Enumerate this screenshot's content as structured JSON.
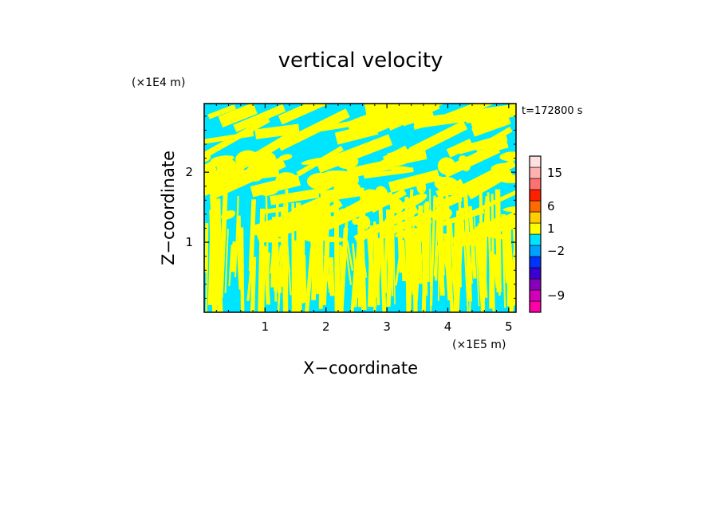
{
  "chart_data": {
    "type": "heatmap",
    "title": "vertical velocity",
    "xlabel": "X−coordinate",
    "ylabel": "Z−coordinate",
    "x_unit": "(×1E5 m)",
    "y_unit": "(×1E4 m)",
    "time_label": "t=172800 s",
    "xlim": [
      0,
      5.12
    ],
    "ylim": [
      0,
      2.98
    ],
    "x_ticks": [
      {
        "value": 1,
        "label": "1"
      },
      {
        "value": 2,
        "label": "2"
      },
      {
        "value": 3,
        "label": "3"
      },
      {
        "value": 4,
        "label": "4"
      },
      {
        "value": 5,
        "label": "5"
      }
    ],
    "y_ticks": [
      {
        "value": 1,
        "label": "1"
      },
      {
        "value": 2,
        "label": "2"
      }
    ],
    "field_colors": {
      "positive": "#ffff00",
      "negative": "#00e5ff"
    },
    "colorbar": {
      "bins": [
        {
          "color": "#ff00a8"
        },
        {
          "color": "#d100b8"
        },
        {
          "color": "#8800bb"
        },
        {
          "color": "#3a00d0"
        },
        {
          "color": "#0033ff"
        },
        {
          "color": "#00a2ff"
        },
        {
          "color": "#00e5ff"
        },
        {
          "color": "#ffff00"
        },
        {
          "color": "#ffcc00"
        },
        {
          "color": "#ff6a00"
        },
        {
          "color": "#ff2000"
        },
        {
          "color": "#ff7070"
        },
        {
          "color": "#ffb0b0"
        },
        {
          "color": "#ffe0e0"
        }
      ],
      "labels": [
        {
          "bin": 1.5,
          "text": "−9"
        },
        {
          "bin": 5.5,
          "text": "−2"
        },
        {
          "bin": 7.5,
          "text": "1"
        },
        {
          "bin": 9.5,
          "text": "6"
        },
        {
          "bin": 12.5,
          "text": "15"
        }
      ]
    }
  }
}
